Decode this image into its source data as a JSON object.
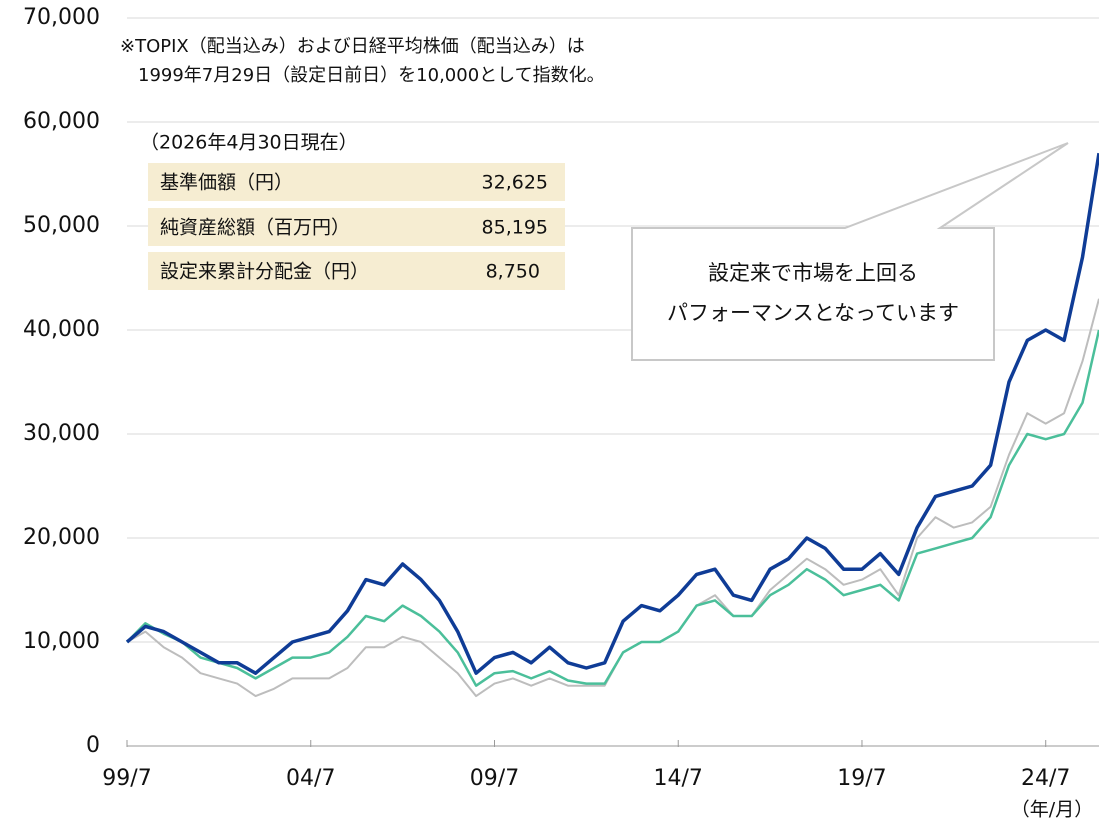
{
  "chart_data": {
    "type": "line",
    "note": [
      "※TOPIX（配当込み）および日経平均株価（配当込み）は",
      "1999年7月29日（設定日前日）を10,000として指数化。"
    ],
    "info_table": {
      "header": "（2026年4月30日現在）",
      "rows": [
        [
          "基準価額（円）",
          "32,625"
        ],
        [
          "純資産総額（百万円）",
          "85,195"
        ],
        [
          "設定来累計分配金（円）",
          "8,750"
        ]
      ]
    },
    "annotation": [
      "設定来で市場を上回る",
      "パフォーマンスとなっています"
    ],
    "x_axis_label": "（年/月）",
    "x": [
      1999.58,
      2000.08,
      2000.58,
      2001.08,
      2001.58,
      2002.08,
      2002.58,
      2003.08,
      2003.58,
      2004.08,
      2004.58,
      2005.08,
      2005.58,
      2006.08,
      2006.58,
      2007.08,
      2007.58,
      2008.08,
      2008.58,
      2009.08,
      2009.58,
      2010.08,
      2010.58,
      2011.08,
      2011.58,
      2012.08,
      2012.58,
      2013.08,
      2013.58,
      2014.08,
      2014.58,
      2015.08,
      2015.58,
      2016.08,
      2016.58,
      2017.08,
      2017.58,
      2018.08,
      2018.58,
      2019.08,
      2019.58,
      2020.08,
      2020.58,
      2021.08,
      2021.58,
      2022.08,
      2022.58,
      2023.08,
      2023.58,
      2024.08,
      2024.58,
      2025.08,
      2025.58,
      2026.03
    ],
    "series": [
      {
        "color": "#bdbdbd",
        "width": 2,
        "values": [
          10000,
          11000,
          9500,
          8500,
          7000,
          6500,
          6000,
          4800,
          5500,
          6500,
          6500,
          6500,
          7500,
          9500,
          9500,
          10500,
          10000,
          8500,
          7000,
          4800,
          6000,
          6500,
          5800,
          6500,
          5800,
          5800,
          5800,
          9000,
          10000,
          10000,
          11000,
          13500,
          14500,
          12500,
          12500,
          15000,
          16500,
          18000,
          17000,
          15500,
          16000,
          17000,
          14500,
          20000,
          22000,
          21000,
          21500,
          23000,
          28000,
          32000,
          31000,
          32000,
          37000,
          43000
        ]
      },
      {
        "color": "#4bbf9a",
        "width": 2.5,
        "values": [
          10000,
          11800,
          10800,
          10000,
          8500,
          8000,
          7500,
          6500,
          7500,
          8500,
          8500,
          9000,
          10500,
          12500,
          12000,
          13500,
          12500,
          11000,
          9000,
          5800,
          7000,
          7200,
          6500,
          7200,
          6300,
          6000,
          6000,
          9000,
          10000,
          10000,
          11000,
          13500,
          14000,
          12500,
          12500,
          14500,
          15500,
          17000,
          16000,
          14500,
          15000,
          15500,
          14000,
          18500,
          19000,
          19500,
          20000,
          22000,
          27000,
          30000,
          29500,
          30000,
          33000,
          40000
        ]
      },
      {
        "color": "#0f3c96",
        "width": 3.5,
        "values": [
          10000,
          11500,
          11000,
          10000,
          9000,
          8000,
          8000,
          7000,
          8500,
          10000,
          10500,
          11000,
          13000,
          16000,
          15500,
          17500,
          16000,
          14000,
          11000,
          7000,
          8500,
          9000,
          8000,
          9500,
          8000,
          7500,
          8000,
          12000,
          13500,
          13000,
          14500,
          16500,
          17000,
          14500,
          14000,
          17000,
          18000,
          20000,
          19000,
          17000,
          17000,
          18500,
          16500,
          21000,
          24000,
          24500,
          25000,
          27000,
          35000,
          39000,
          40000,
          39000,
          47000,
          57000
        ]
      }
    ],
    "xlim": [
      1999.58,
      2026.03
    ],
    "xticks": [
      {
        "value": 1999.58,
        "label": "99/7"
      },
      {
        "value": 2004.58,
        "label": "04/7"
      },
      {
        "value": 2009.58,
        "label": "09/7"
      },
      {
        "value": 2014.58,
        "label": "14/7"
      },
      {
        "value": 2019.58,
        "label": "19/7"
      },
      {
        "value": 2024.58,
        "label": "24/7"
      }
    ],
    "ylim": [
      0,
      70000
    ],
    "yticks": [
      0,
      {
        "value": 10000,
        "label": "10,000"
      },
      {
        "value": 20000,
        "label": "20,000"
      },
      {
        "value": 30000,
        "label": "30,000"
      },
      {
        "value": 40000,
        "label": "40,000"
      },
      {
        "value": 50000,
        "label": "50,000"
      },
      {
        "value": 60000,
        "label": "60,000"
      },
      {
        "value": 70000,
        "label": "70,000"
      }
    ],
    "grid": true
  }
}
